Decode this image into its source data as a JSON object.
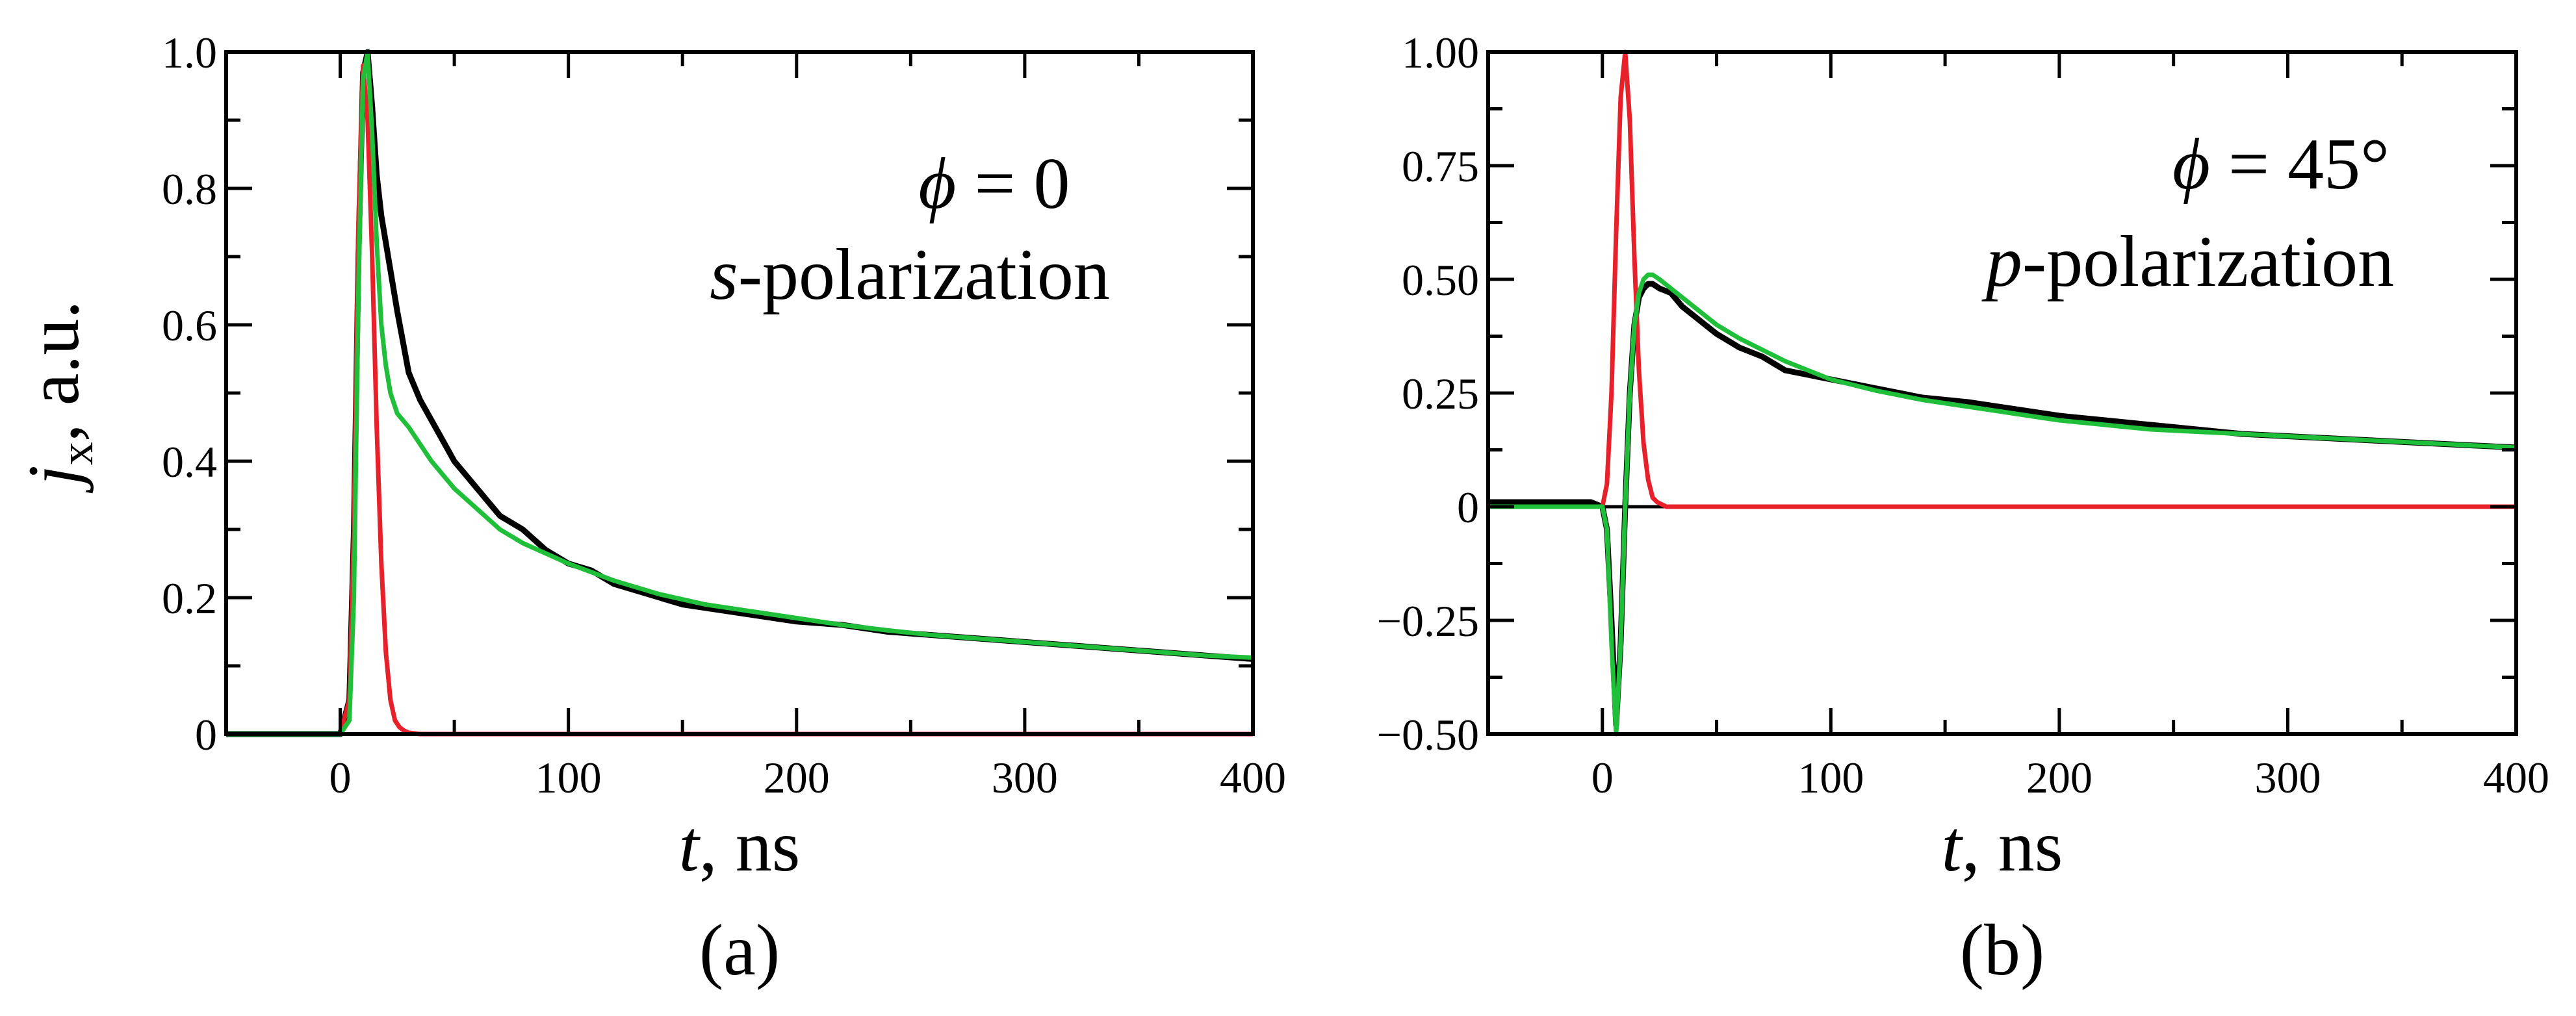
{
  "chart_data": [
    {
      "type": "line",
      "panel_label": "(a)",
      "xlabel": {
        "var": "t",
        "unit": ", ns"
      },
      "ylabel": {
        "var": "j",
        "sub": "x",
        "unit": ", a.u."
      },
      "xlim": [
        -50,
        400
      ],
      "ylim": [
        0,
        1.0
      ],
      "xticks": [
        0,
        100,
        200,
        300,
        400
      ],
      "xtick_labels": [
        "0",
        "100",
        "200",
        "300",
        "400"
      ],
      "yticks": [
        0,
        0.2,
        0.4,
        0.6,
        0.8,
        1.0
      ],
      "ytick_labels": [
        "0",
        "0.2",
        "0.4",
        "0.6",
        "0.8",
        "1.0"
      ],
      "annotation": {
        "line1_sym": "ϕ",
        "line1_rest": " = 0",
        "line2_var": "s",
        "line2_rest": "-polarization"
      },
      "series": [
        {
          "name": "black",
          "color": "#000000",
          "x": [
            -50,
            -30,
            -10,
            0,
            4,
            6,
            8,
            10,
            12,
            14,
            16,
            18,
            20,
            25,
            30,
            35,
            40,
            45,
            50,
            60,
            70,
            80,
            90,
            100,
            110,
            120,
            130,
            140,
            150,
            160,
            170,
            180,
            190,
            200,
            220,
            240,
            260,
            280,
            300,
            320,
            340,
            360,
            380,
            400
          ],
          "y": [
            0.0,
            0.0,
            0.0,
            0.0,
            0.05,
            0.3,
            0.7,
            0.97,
            1.0,
            0.92,
            0.82,
            0.76,
            0.72,
            0.62,
            0.53,
            0.49,
            0.46,
            0.43,
            0.4,
            0.36,
            0.32,
            0.3,
            0.27,
            0.25,
            0.24,
            0.22,
            0.21,
            0.2,
            0.19,
            0.185,
            0.18,
            0.175,
            0.17,
            0.165,
            0.16,
            0.15,
            0.145,
            0.14,
            0.135,
            0.13,
            0.125,
            0.12,
            0.115,
            0.11
          ]
        },
        {
          "name": "red",
          "color": "#e8202a",
          "x": [
            -50,
            -10,
            0,
            4,
            6,
            8,
            10,
            12,
            14,
            16,
            18,
            20,
            22,
            24,
            26,
            28,
            30,
            35,
            40,
            60,
            100,
            150,
            200,
            250,
            300,
            350,
            400
          ],
          "y": [
            0,
            0,
            0,
            0.05,
            0.3,
            0.75,
            0.98,
            0.9,
            0.7,
            0.45,
            0.25,
            0.12,
            0.05,
            0.02,
            0.01,
            0.005,
            0.002,
            0.0,
            0.0,
            0.0,
            0.0,
            0.0,
            0.0,
            0.0,
            0.0,
            0.0,
            0.0
          ]
        },
        {
          "name": "green",
          "color": "#1fbf3a",
          "x": [
            -50,
            -20,
            0,
            4,
            6,
            8,
            10,
            12,
            14,
            16,
            18,
            20,
            22,
            25,
            30,
            40,
            50,
            60,
            70,
            80,
            90,
            100,
            120,
            140,
            160,
            180,
            200,
            220,
            240,
            260,
            280,
            300,
            320,
            340,
            360,
            380,
            400
          ],
          "y": [
            0,
            0,
            0,
            0.02,
            0.2,
            0.65,
            0.96,
            1.0,
            0.88,
            0.72,
            0.6,
            0.54,
            0.5,
            0.47,
            0.45,
            0.4,
            0.36,
            0.33,
            0.3,
            0.28,
            0.265,
            0.25,
            0.225,
            0.205,
            0.19,
            0.18,
            0.17,
            0.16,
            0.152,
            0.145,
            0.14,
            0.135,
            0.13,
            0.125,
            0.12,
            0.115,
            0.112
          ]
        }
      ]
    },
    {
      "type": "line",
      "panel_label": "(b)",
      "xlabel": {
        "var": "t",
        "unit": ", ns"
      },
      "xlim": [
        -50,
        400
      ],
      "ylim": [
        -0.5,
        1.0
      ],
      "xticks": [
        0,
        100,
        200,
        300,
        400
      ],
      "xtick_labels": [
        "0",
        "100",
        "200",
        "300",
        "400"
      ],
      "yticks": [
        -0.5,
        -0.25,
        0,
        0.25,
        0.5,
        0.75,
        1.0
      ],
      "ytick_labels": [
        "−0.50",
        "−0.25",
        "0",
        "0.25",
        "0.50",
        "0.75",
        "1.00"
      ],
      "annotation": {
        "line1_sym": "ϕ",
        "line1_rest": " = 45°",
        "line2_var": "p",
        "line2_rest": "-polarization"
      },
      "series": [
        {
          "name": "black",
          "color": "#000000",
          "x": [
            -50,
            -20,
            -5,
            0,
            2,
            4,
            6,
            8,
            10,
            12,
            14,
            16,
            18,
            20,
            22,
            25,
            30,
            35,
            40,
            50,
            60,
            70,
            80,
            90,
            100,
            120,
            140,
            160,
            180,
            200,
            220,
            240,
            260,
            280,
            300,
            320,
            340,
            360,
            380,
            400
          ],
          "y": [
            0.01,
            0.01,
            0.01,
            0.0,
            -0.05,
            -0.25,
            -0.48,
            -0.3,
            0.0,
            0.25,
            0.4,
            0.46,
            0.48,
            0.49,
            0.49,
            0.48,
            0.47,
            0.44,
            0.42,
            0.38,
            0.35,
            0.33,
            0.3,
            0.29,
            0.28,
            0.26,
            0.24,
            0.23,
            0.215,
            0.2,
            0.19,
            0.18,
            0.17,
            0.16,
            0.155,
            0.15,
            0.145,
            0.14,
            0.135,
            0.13
          ]
        },
        {
          "name": "red",
          "color": "#e8202a",
          "x": [
            -50,
            0,
            2,
            4,
            6,
            8,
            10,
            12,
            14,
            16,
            18,
            20,
            22,
            24,
            26,
            28,
            30,
            40,
            60,
            100,
            150,
            200,
            250,
            300,
            350,
            400
          ],
          "y": [
            0,
            0,
            0.05,
            0.25,
            0.6,
            0.9,
            1.0,
            0.85,
            0.55,
            0.3,
            0.14,
            0.06,
            0.02,
            0.01,
            0.005,
            0.0,
            0.0,
            0.0,
            0.0,
            0.0,
            0.0,
            0.0,
            0.0,
            0.0,
            0.0,
            0.0
          ]
        },
        {
          "name": "green",
          "color": "#1fbf3a",
          "x": [
            -50,
            -5,
            0,
            2,
            4,
            6,
            8,
            10,
            12,
            14,
            16,
            18,
            20,
            22,
            25,
            30,
            40,
            50,
            60,
            80,
            100,
            120,
            140,
            160,
            180,
            200,
            220,
            240,
            260,
            280,
            300,
            320,
            340,
            360,
            380,
            400
          ],
          "y": [
            0.0,
            0.0,
            0.0,
            -0.05,
            -0.3,
            -0.5,
            -0.3,
            0.0,
            0.25,
            0.4,
            0.47,
            0.5,
            0.51,
            0.51,
            0.5,
            0.48,
            0.44,
            0.4,
            0.37,
            0.32,
            0.28,
            0.255,
            0.235,
            0.22,
            0.205,
            0.19,
            0.18,
            0.17,
            0.165,
            0.16,
            0.155,
            0.15,
            0.145,
            0.14,
            0.135,
            0.13
          ]
        }
      ]
    }
  ]
}
